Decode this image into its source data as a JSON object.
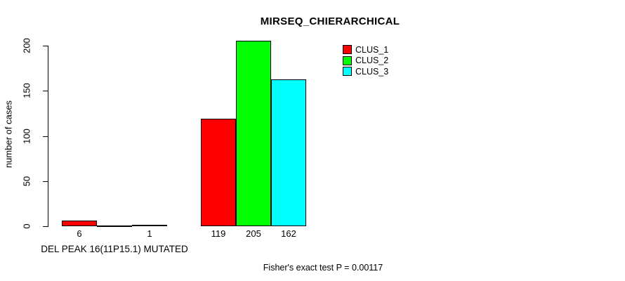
{
  "chart_data": {
    "type": "bar",
    "title": "MIRSEQ_CHIERARCHICAL",
    "ylabel": "number of cases",
    "xlabel": "",
    "ylim": [
      0,
      200
    ],
    "yticks": [
      0,
      50,
      100,
      150,
      200
    ],
    "grid": false,
    "legend_position": "top-right",
    "categories": [
      "DEL PEAK 16(11P15.1) MUTATED",
      ""
    ],
    "series": [
      {
        "name": "CLUS_1",
        "color": "#ff0000",
        "values": [
          6,
          119
        ]
      },
      {
        "name": "CLUS_2",
        "color": "#00ff00",
        "values": [
          0,
          205
        ]
      },
      {
        "name": "CLUS_3",
        "color": "#00ffff",
        "values": [
          1,
          162
        ]
      }
    ],
    "bar_labels": [
      [
        "6",
        "",
        "1"
      ],
      [
        "119",
        "205",
        "162"
      ]
    ],
    "group_label": "DEL PEAK 16(11P15.1) MUTATED",
    "footnote": "Fisher's exact test P = 0.00117"
  }
}
